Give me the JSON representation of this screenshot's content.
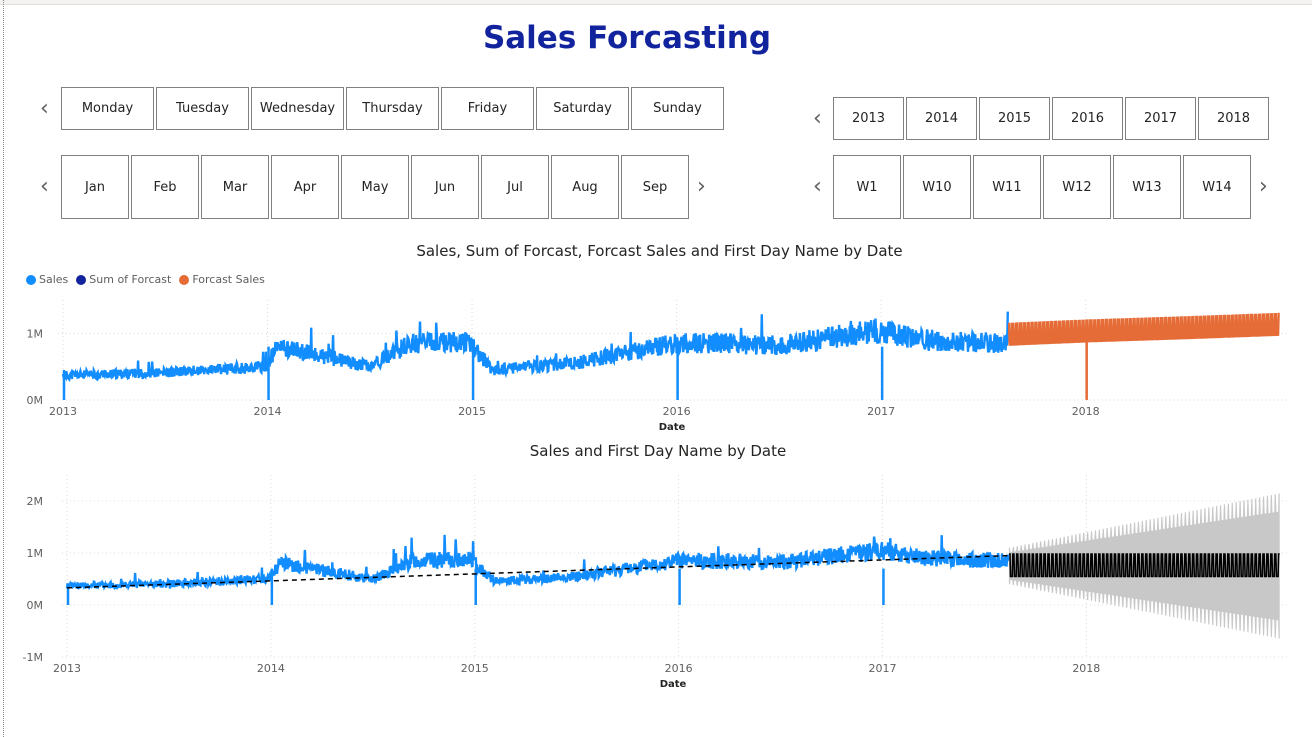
{
  "title": "Sales Forcasting",
  "days": [
    "Monday",
    "Tuesday",
    "Wednesday",
    "Thursday",
    "Friday",
    "Saturday",
    "Sunday"
  ],
  "months": [
    "Jan",
    "Feb",
    "Mar",
    "Apr",
    "May",
    "Jun",
    "Jul",
    "Aug",
    "Sep"
  ],
  "years": [
    "2013",
    "2014",
    "2015",
    "2016",
    "2017",
    "2018"
  ],
  "weeks": [
    "W1",
    "W10",
    "W11",
    "W12",
    "W13",
    "W14"
  ],
  "icons": {
    "left": "chevron-left-icon",
    "right": "chevron-right-icon"
  },
  "chart1": {
    "title": "Sales, Sum of Forcast, Forcast Sales and First Day Name by Date",
    "legend": [
      "Sales",
      "Sum of Forcast",
      "Forcast Sales"
    ],
    "colors": {
      "sales": "#118dff",
      "sum_forcast": "#12239e",
      "forcast_sales": "#e66c37"
    },
    "xlabel": "Date",
    "y_ticks": [
      "0M",
      "1M"
    ],
    "x_ticks": [
      "2013",
      "2014",
      "2015",
      "2016",
      "2017",
      "2018"
    ]
  },
  "chart2": {
    "title": "Sales and First Day Name by Date",
    "xlabel": "Date",
    "y_ticks": [
      "-1M",
      "0M",
      "1M",
      "2M"
    ],
    "x_ticks": [
      "2013",
      "2014",
      "2015",
      "2016",
      "2017",
      "2018"
    ],
    "colors": {
      "sales": "#118dff",
      "trend": "#000000",
      "forecast": "#000000",
      "band": "#c8c8c8"
    }
  },
  "chart_data": [
    {
      "type": "line",
      "title": "Sales, Sum of Forcast, Forcast Sales and First Day Name by Date",
      "xlabel": "Date",
      "ylabel": "",
      "x_range": [
        2013.0,
        2018.95
      ],
      "ylim": [
        0,
        1500000
      ],
      "series": [
        {
          "name": "Sales",
          "x": [
            2013.0,
            2013.5,
            2013.99,
            2014.05,
            2014.5,
            2014.7,
            2014.98,
            2015.1,
            2015.5,
            2015.99,
            2016.2,
            2016.5,
            2016.99,
            2017.2,
            2017.62
          ],
          "values": [
            370000,
            410000,
            500000,
            800000,
            500000,
            850000,
            880000,
            450000,
            550000,
            850000,
            850000,
            820000,
            1050000,
            900000,
            850000
          ]
        },
        {
          "name": "Sum of Forcast",
          "x": [],
          "values": []
        },
        {
          "name": "Forcast Sales",
          "x": [
            2017.62,
            2018.0,
            2018.5,
            2018.95
          ],
          "values": [
            950000,
            1000000,
            1050000,
            1100000
          ]
        }
      ]
    },
    {
      "type": "line",
      "title": "Sales and First Day Name by Date",
      "xlabel": "Date",
      "ylabel": "",
      "x_range": [
        2013.0,
        2018.95
      ],
      "ylim": [
        -1000000,
        2500000
      ],
      "series": [
        {
          "x": [
            2013.0,
            2013.5,
            2013.99,
            2014.05,
            2014.5,
            2014.7,
            2014.98,
            2015.1,
            2015.5,
            2015.99,
            2016.2,
            2016.5,
            2016.99,
            2017.2,
            2017.62
          ],
          "values": [
            370000,
            410000,
            500000,
            800000,
            500000,
            850000,
            880000,
            450000,
            550000,
            850000,
            850000,
            820000,
            1050000,
            900000,
            850000
          ]
        },
        {
          "x": [
            2013.0,
            2017.62
          ],
          "values": [
            330000,
            950000
          ]
        },
        {
          "x": [
            2017.62,
            2018.95
          ],
          "values": [
            750000,
            750000
          ]
        }
      ]
    }
  ]
}
